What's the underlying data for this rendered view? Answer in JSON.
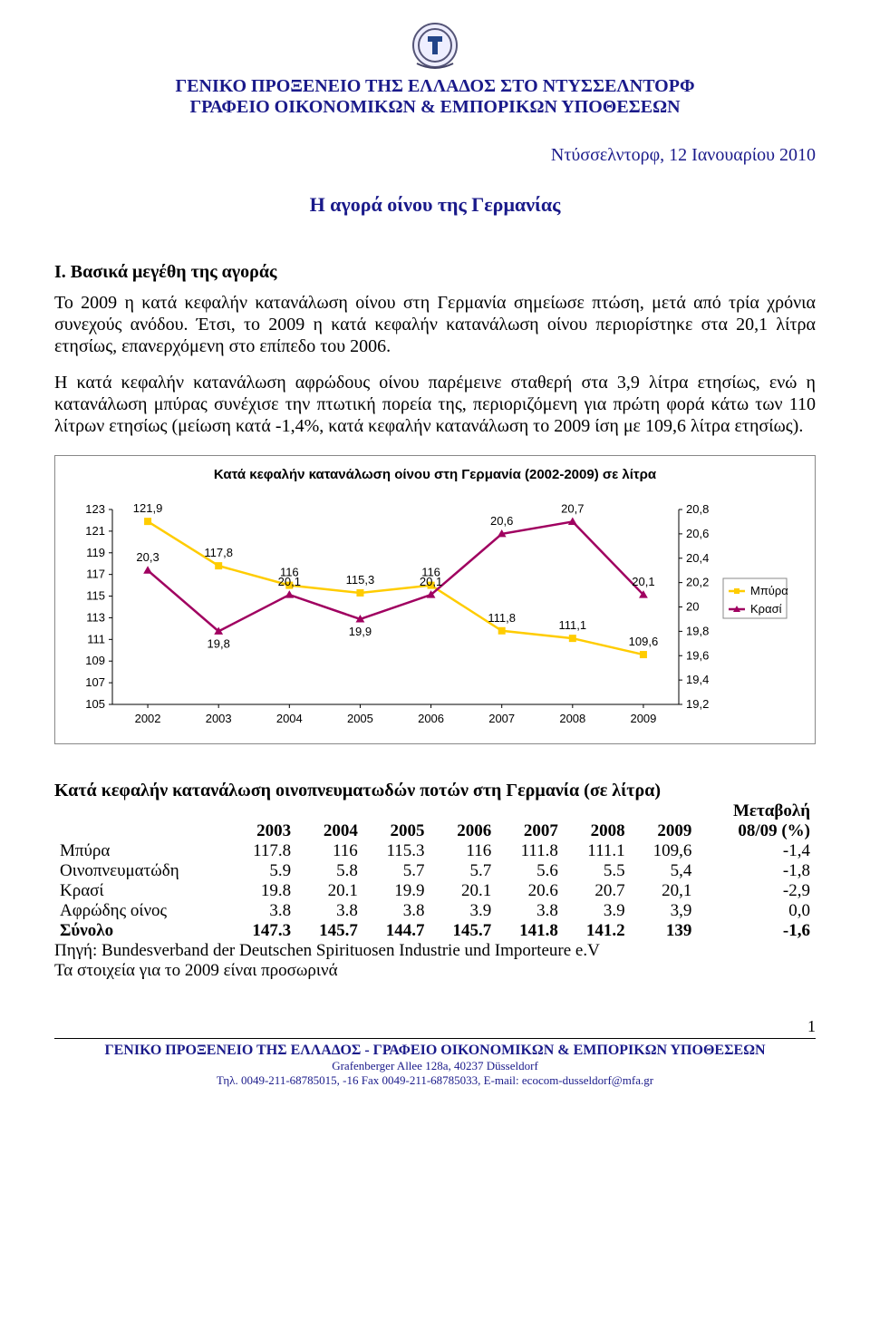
{
  "header": {
    "line1": "ΓΕΝΙΚΟ ΠΡΟΞΕΝΕΙΟ ΤΗΣ ΕΛΛΑΔΟΣ ΣΤΟ ΝΤΥΣΣΕΛΝΤΟΡΦ",
    "line2": "ΓΡΑΦΕΙΟ ΟΙΚΟΝΟΜΙΚΩΝ &  ΕΜΠΟΡΙΚΩΝ ΥΠΟΘΕΣΕΩΝ"
  },
  "date_line": "Ντύσσελντορφ,  12 Ιανουαρίου 2010",
  "doc_title": "Η αγορά οίνου της Γερμανίας",
  "section1": {
    "heading": "Ι. Βασικά μεγέθη της αγοράς",
    "para1": "Το 2009 η κατά κεφαλήν κατανάλωση οίνου στη Γερμανία σημείωσε πτώση, μετά από τρία χρόνια συνεχούς ανόδου. Έτσι, το 2009 η κατά κεφαλήν κατανάλωση οίνου περιορίστηκε στα 20,1 λίτρα ετησίως, επανερχόμενη στο επίπεδο του 2006.",
    "para2": "Η κατά κεφαλήν κατανάλωση αφρώδους οίνου παρέμεινε σταθερή στα 3,9 λίτρα ετησίως, ενώ η κατανάλωση μπύρας συνέχισε την πτωτική πορεία της, περιοριζόμενη για πρώτη φορά κάτω των 110 λίτρων ετησίως (μείωση κατά -1,4%, κατά κεφαλήν κατανάλωση το 2009 ίση με 109,6 λίτρα ετησίως)."
  },
  "chart": {
    "type": "dual-axis-line",
    "title": "Κατά κεφαλήν κατανάλωση οίνου στη Γερμανία (2002-2009) σε λίτρα",
    "x_labels": [
      "2002",
      "2003",
      "2004",
      "2005",
      "2006",
      "2007",
      "2008",
      "2009"
    ],
    "left_axis": {
      "min": 105,
      "max": 123,
      "step": 2
    },
    "right_axis": {
      "min": 19.2,
      "max": 20.8,
      "step": 0.2,
      "labels": [
        "19,2",
        "19,4",
        "19,6",
        "19,8",
        "20",
        "20,2",
        "20,4",
        "20,6",
        "20,8"
      ]
    },
    "series": [
      {
        "name": "Μπύρα",
        "axis": "left",
        "color": "#ffcc00",
        "marker": "square",
        "values": [
          121.9,
          117.8,
          116,
          115.3,
          116,
          111.8,
          111.1,
          109.6
        ],
        "value_labels": [
          "121,9",
          "117,8",
          "116",
          "115,3",
          "116",
          "111,8",
          "111,1",
          "109,6"
        ]
      },
      {
        "name": "Κρασί",
        "axis": "right",
        "color": "#a00060",
        "marker": "triangle",
        "values": [
          20.3,
          19.8,
          20.1,
          19.9,
          20.1,
          20.6,
          20.7,
          20.1
        ],
        "value_labels": [
          "20,3",
          "19,8",
          "20,1",
          "19,9",
          "20,1",
          "20,6",
          "20,7",
          "20,1"
        ]
      }
    ],
    "legend": [
      "Μπύρα",
      "Κρασί"
    ],
    "title_fontsize": 15,
    "label_fontsize": 13,
    "background_color": "#ffffff",
    "grid_color": "#000000",
    "line_width": 2.5,
    "marker_size": 7
  },
  "table": {
    "title": "Κατά κεφαλήν κατανάλωση οινοπνευματωδών ποτών στη Γερμανία (σε λίτρα)",
    "last_col_head_top": "Μεταβολή",
    "columns": [
      "",
      "2003",
      "2004",
      "2005",
      "2006",
      "2007",
      "2008",
      "2009",
      "08/09 (%)"
    ],
    "rows": [
      [
        "Μπύρα",
        "117.8",
        "116",
        "115.3",
        "116",
        "111.8",
        "111.1",
        "109,6",
        "-1,4"
      ],
      [
        "Οινοπνευματώδη",
        "5.9",
        "5.8",
        "5.7",
        "5.7",
        "5.6",
        "5.5",
        "5,4",
        "-1,8"
      ],
      [
        "Κρασί",
        "19.8",
        "20.1",
        "19.9",
        "20.1",
        "20.6",
        "20.7",
        "20,1",
        "-2,9"
      ],
      [
        "Αφρώδης οίνος",
        "3.8",
        "3.8",
        "3.8",
        "3.9",
        "3.8",
        "3.9",
        "3,9",
        "0,0"
      ]
    ],
    "total_row": [
      "Σύνολο",
      "147.3",
      "145.7",
      "144.7",
      "145.7",
      "141.8",
      "141.2",
      "139",
      "-1,6"
    ],
    "source": "Πηγή: Bundesverband der Deutschen Spirituosen Industrie und Importeure e.V",
    "note": "Τα στοιχεία για το 2009 είναι προσωρινά"
  },
  "page_number": "1",
  "footer": {
    "line1": "ΓΕΝΙΚΟ ΠΡΟΞΕΝΕΙΟ ΤΗΣ ΕΛΛΑΔΟΣ - ΓΡΑΦΕΙΟ ΟΙΚΟΝΟΜΙΚΩΝ &  ΕΜΠΟΡΙΚΩΝ ΥΠΟΘΕΣΕΩΝ",
    "line2": "Grafenberger Allee 128a, 40237 Düsseldorf",
    "line3": "Τηλ. 0049-211-68785015, -16  Fax 0049-211-68785033, E-mail: ecocom-dusseldorf@mfa.gr"
  }
}
